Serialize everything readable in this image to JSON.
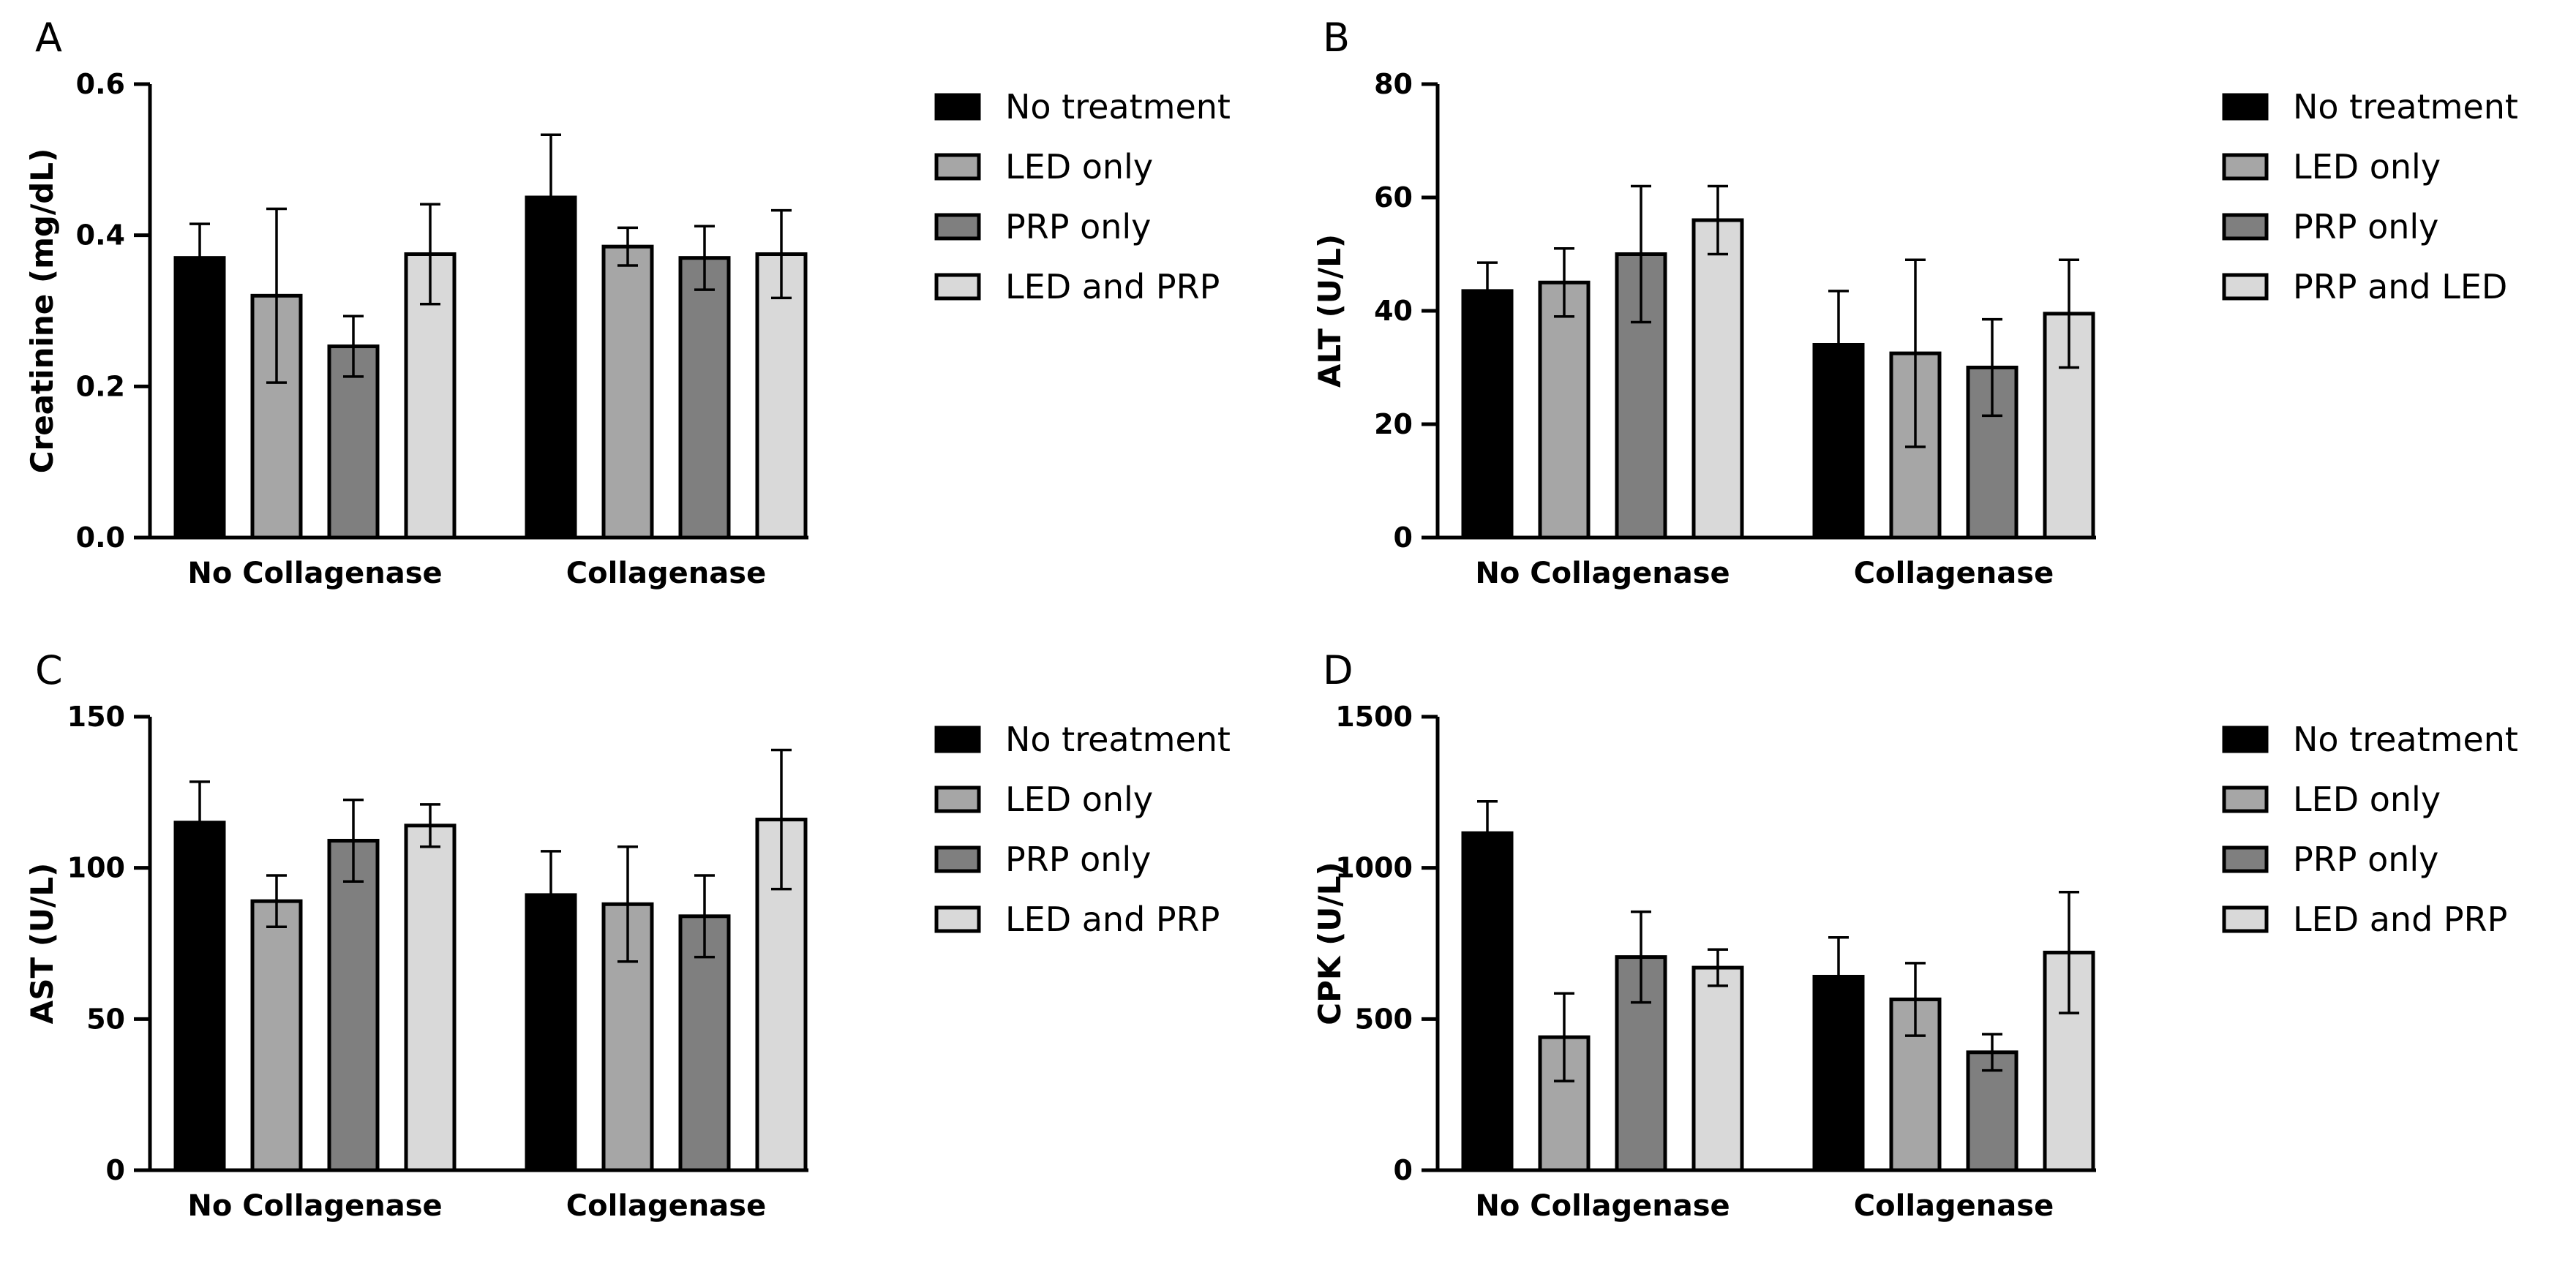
{
  "figure": {
    "colors": {
      "No treatment": "#000000",
      "LED only": "#a6a6a6",
      "PRP only": "#7f7f7f",
      "LED and PRP": "#d9d9d9",
      "PRP and LED": "#d9d9d9",
      "stroke": "#000000"
    }
  },
  "chart_data": [
    {
      "panel": "A",
      "type": "bar",
      "ylabel": "Creatinine (mg/dL)",
      "xlabel": "",
      "ylim": [
        0,
        0.6
      ],
      "yticks": [
        "0.0",
        "0.2",
        "0.4",
        "0.6"
      ],
      "ytick_values": [
        0,
        0.2,
        0.4,
        0.6
      ],
      "categories": [
        "No Collagenase",
        "Collagenase"
      ],
      "legend_position": "right",
      "series": [
        {
          "name": "No treatment",
          "values": [
            0.37,
            0.45
          ],
          "errors": [
            0.045,
            0.083
          ]
        },
        {
          "name": "LED only",
          "values": [
            0.32,
            0.385
          ],
          "errors": [
            0.115,
            0.025
          ]
        },
        {
          "name": "PRP only",
          "values": [
            0.253,
            0.37
          ],
          "errors": [
            0.04,
            0.042
          ]
        },
        {
          "name": "LED and PRP",
          "values": [
            0.375,
            0.375
          ],
          "errors": [
            0.066,
            0.058
          ]
        }
      ]
    },
    {
      "panel": "B",
      "type": "bar",
      "ylabel": "ALT (U/L)",
      "xlabel": "",
      "ylim": [
        0,
        80
      ],
      "yticks": [
        "0",
        "20",
        "40",
        "60",
        "80"
      ],
      "ytick_values": [
        0,
        20,
        40,
        60,
        80
      ],
      "categories": [
        "No Collagenase",
        "Collagenase"
      ],
      "legend_position": "right",
      "series": [
        {
          "name": "No treatment",
          "values": [
            43.5,
            34
          ],
          "errors": [
            5,
            9.5
          ]
        },
        {
          "name": "LED only",
          "values": [
            45,
            32.5
          ],
          "errors": [
            6,
            16.5
          ]
        },
        {
          "name": "PRP only",
          "values": [
            50,
            30
          ],
          "errors": [
            12,
            8.5
          ]
        },
        {
          "name": "PRP and LED",
          "values": [
            56,
            39.5
          ],
          "errors": [
            6,
            9.5
          ]
        }
      ]
    },
    {
      "panel": "C",
      "type": "bar",
      "ylabel": "AST (U/L)",
      "xlabel": "",
      "ylim": [
        0,
        150
      ],
      "yticks": [
        "0",
        "50",
        "100",
        "150"
      ],
      "ytick_values": [
        0,
        50,
        100,
        150
      ],
      "categories": [
        "No Collagenase",
        "Collagenase"
      ],
      "legend_position": "right",
      "series": [
        {
          "name": "No treatment",
          "values": [
            115,
            91
          ],
          "errors": [
            13.5,
            14.5
          ]
        },
        {
          "name": "LED only",
          "values": [
            89,
            88
          ],
          "errors": [
            8.5,
            19
          ]
        },
        {
          "name": "PRP only",
          "values": [
            109,
            84
          ],
          "errors": [
            13.5,
            13.5
          ]
        },
        {
          "name": "LED and PRP",
          "values": [
            114,
            116
          ],
          "errors": [
            7,
            23
          ]
        }
      ]
    },
    {
      "panel": "D",
      "type": "bar",
      "ylabel": "CPK (U/L)",
      "xlabel": "",
      "ylim": [
        0,
        1500
      ],
      "yticks": [
        "0",
        "500",
        "1000",
        "1500"
      ],
      "ytick_values": [
        0,
        500,
        1000,
        1500
      ],
      "categories": [
        "No Collagenase",
        "Collagenase"
      ],
      "legend_position": "right",
      "series": [
        {
          "name": "No treatment",
          "values": [
            1115,
            640
          ],
          "errors": [
            105,
            130
          ]
        },
        {
          "name": "LED only",
          "values": [
            440,
            565
          ],
          "errors": [
            145,
            120
          ]
        },
        {
          "name": "PRP only",
          "values": [
            705,
            390
          ],
          "errors": [
            150,
            60
          ]
        },
        {
          "name": "LED and PRP",
          "values": [
            670,
            720
          ],
          "errors": [
            60,
            200
          ]
        }
      ]
    }
  ]
}
